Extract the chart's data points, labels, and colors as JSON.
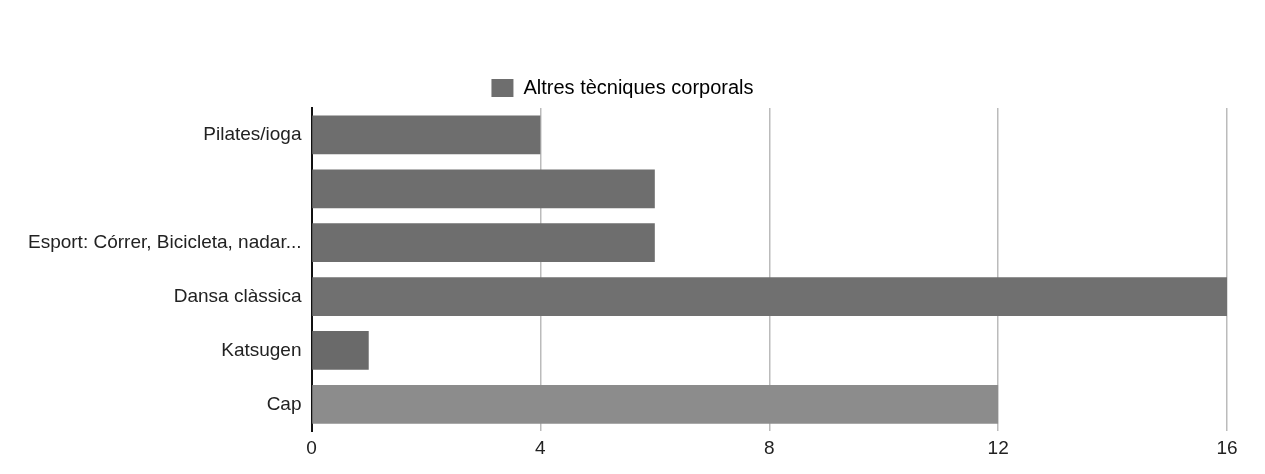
{
  "chart_data": {
    "type": "bar",
    "orientation": "horizontal",
    "categories": [
      "Pilates/ioga",
      null,
      "Esport: Córrer, Bicicleta, nadar...",
      "Dansa clàssica",
      "Katsugen",
      "Cap"
    ],
    "series": [
      {
        "name": "Altres tècniques corporals",
        "color": "#6e6e6e",
        "colors": [
          "#6e6e6e",
          "#6e6e6e",
          "#6e6e6e",
          "#707070",
          "#6a6a6a",
          "#8c8c8c"
        ],
        "values": [
          4,
          6,
          6,
          16,
          1,
          12
        ]
      }
    ],
    "xlim": [
      0,
      16
    ],
    "xticks": [
      0,
      4,
      8,
      12,
      16
    ],
    "grid": "x",
    "legend": "top"
  }
}
